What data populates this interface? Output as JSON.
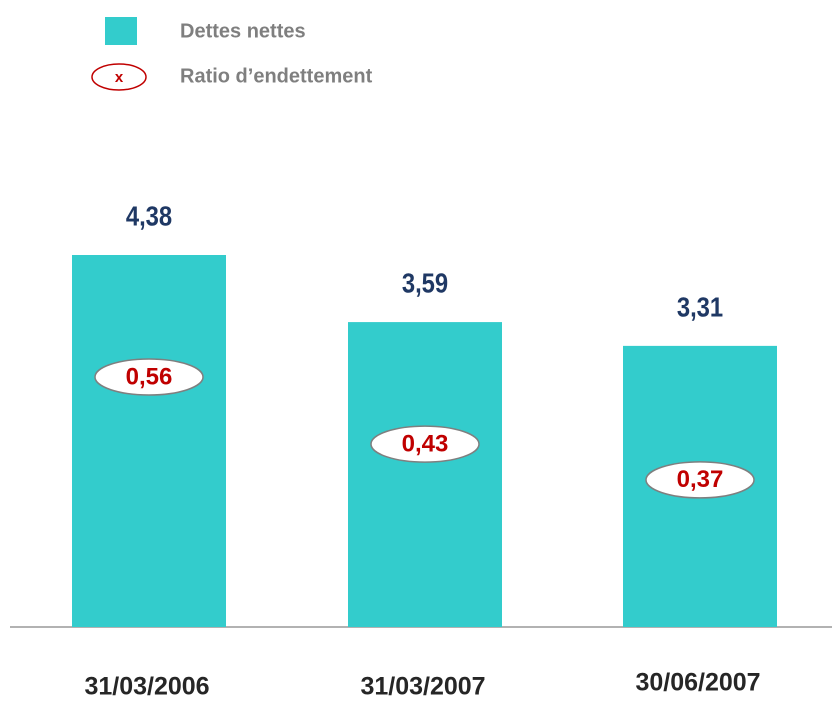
{
  "chart_data": {
    "type": "bar",
    "categories": [
      "31/03/2006",
      "31/03/2007",
      "30/06/2007"
    ],
    "series": [
      {
        "name": "Dettes nettes",
        "color": "#33cccc",
        "values": [
          4.38,
          3.59,
          3.31
        ],
        "value_labels": [
          "4,38",
          "3,59",
          "3,31"
        ],
        "label_color": "#1f3864"
      },
      {
        "name": "Ratio d’endettement",
        "color": "#c00000",
        "values": [
          0.56,
          0.43,
          0.37
        ],
        "value_labels": [
          "0,56",
          "0,43",
          "0,37"
        ]
      }
    ],
    "legend_symbol": "x"
  }
}
